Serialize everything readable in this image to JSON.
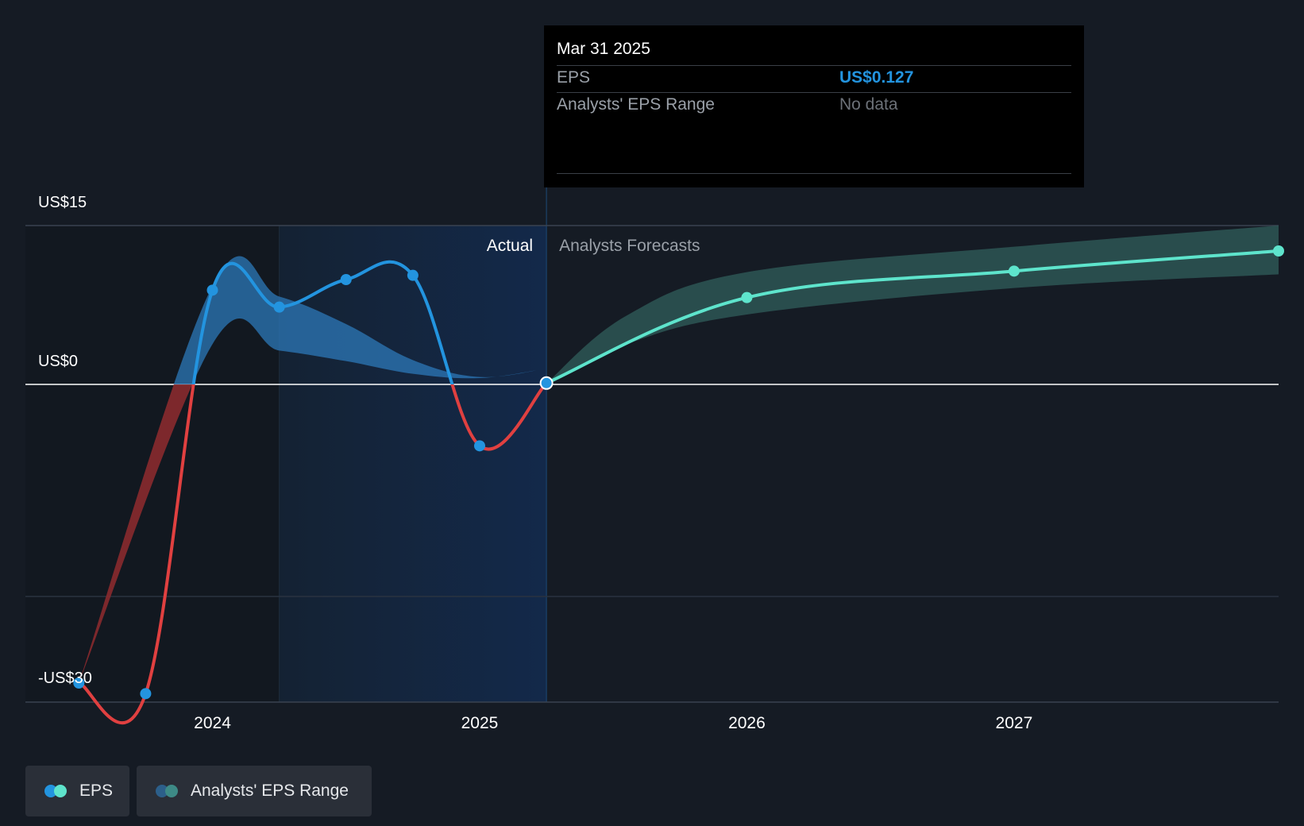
{
  "chart_data": {
    "type": "line",
    "title": "",
    "xlabel": "",
    "ylabel": "",
    "ylim": [
      -30,
      15
    ],
    "y_tick_labels": [
      "US$15",
      "US$0",
      "-US$30"
    ],
    "y_tick_values": [
      15,
      0,
      -30
    ],
    "x_tick_labels": [
      "2024",
      "2025",
      "2026",
      "2027"
    ],
    "x_tick_values": [
      2024,
      2025,
      2026,
      2027
    ],
    "xlim": [
      2023.3,
      2027.99
    ],
    "actual_divider_x": 2025.25,
    "actual_region_start_x": 2024.25,
    "section_labels": {
      "actual": "Actual",
      "forecast": "Analysts Forecasts"
    },
    "series": [
      {
        "name": "EPS (actual)",
        "points": [
          {
            "x": 2023.5,
            "y": -28.2
          },
          {
            "x": 2023.75,
            "y": -29.2
          },
          {
            "x": 2024.0,
            "y": 8.9
          },
          {
            "x": 2024.25,
            "y": 7.3
          },
          {
            "x": 2024.5,
            "y": 9.9
          },
          {
            "x": 2024.75,
            "y": 10.3
          },
          {
            "x": 2025.0,
            "y": -5.8
          },
          {
            "x": 2025.25,
            "y": 0.127
          }
        ]
      },
      {
        "name": "EPS (analyst forecast)",
        "points": [
          {
            "x": 2025.25,
            "y": 0.127
          },
          {
            "x": 2026.0,
            "y": 8.2
          },
          {
            "x": 2027.0,
            "y": 10.7
          },
          {
            "x": 2027.99,
            "y": 12.6
          }
        ]
      }
    ],
    "range_band_actual": [
      {
        "x": 2023.5,
        "low": -28.2,
        "high": -28.2
      },
      {
        "x": 2024.0,
        "low": 3.8,
        "high": 9.3
      },
      {
        "x": 2024.25,
        "low": 3.2,
        "high": 8.3
      },
      {
        "x": 2024.5,
        "low": 2.2,
        "high": 5.7
      },
      {
        "x": 2024.75,
        "low": 1.0,
        "high": 2.3
      },
      {
        "x": 2025.0,
        "low": 0.6,
        "high": 0.7
      },
      {
        "x": 2025.25,
        "low": 1.5,
        "high": 1.5
      }
    ],
    "range_band_forecast": [
      {
        "x": 2025.25,
        "low": 0.1,
        "high": 0.1
      },
      {
        "x": 2025.55,
        "low": 3.8,
        "high": 6.5
      },
      {
        "x": 2026.0,
        "low": 6.6,
        "high": 10.6
      },
      {
        "x": 2027.0,
        "low": 9.1,
        "high": 13.0
      },
      {
        "x": 2027.99,
        "low": 10.4,
        "high": 15.0
      }
    ]
  },
  "tooltip": {
    "date": "Mar 31 2025",
    "rows": [
      {
        "label": "EPS",
        "value": "US$0.127"
      },
      {
        "label": "Analysts' EPS Range",
        "value": "No data"
      }
    ]
  },
  "legend": {
    "items": [
      {
        "label": "EPS"
      },
      {
        "label": "Analysts' EPS Range"
      }
    ]
  },
  "colors": {
    "background": "#151b24",
    "eps_positive": "#2394df",
    "eps_negative": "#e04040",
    "forecast": "#5ee4cc",
    "band_actual": "#2c78b8",
    "band_negative": "#8a2a2e",
    "band_forecast": "#2e5a58",
    "tooltip_value": "#2394df",
    "tooltip_nodata": "#6c7178"
  }
}
